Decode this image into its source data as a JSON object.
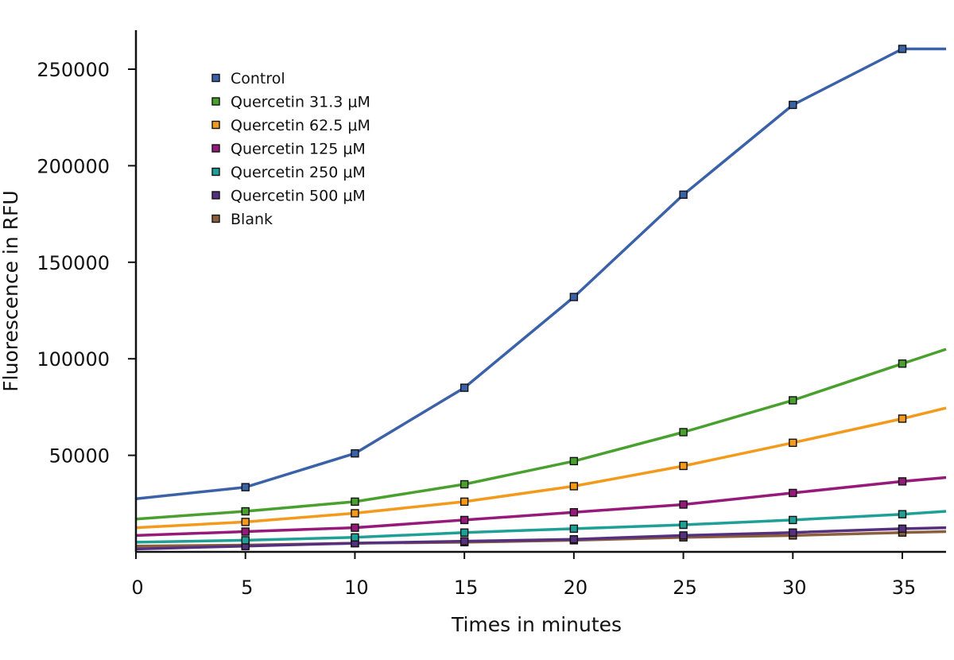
{
  "chart_data": {
    "type": "line",
    "title": "",
    "xlabel": "Times in minutes",
    "ylabel": "Fluorescence in RFU",
    "xlim": [
      0,
      37
    ],
    "ylim": [
      0,
      270000
    ],
    "x_ticks": [
      "0",
      "5",
      "10",
      "15",
      "20",
      "25",
      "30",
      "35"
    ],
    "y_ticks": [
      "50000",
      "100000",
      "150000",
      "200000",
      "250000"
    ],
    "grid": false,
    "legend_position": "top-left",
    "x": [
      0,
      5,
      10,
      15,
      20,
      25,
      30,
      35,
      37
    ],
    "marker_x": [
      5,
      10,
      15,
      20,
      25,
      30,
      35
    ],
    "series": [
      {
        "name": "Control",
        "color": "#3b62a8",
        "values": [
          27500,
          33500,
          51000,
          85000,
          132000,
          185000,
          231500,
          260500,
          260500
        ]
      },
      {
        "name": "Quercetin 31.3 μM",
        "color": "#4aa02f",
        "values": [
          17000,
          21000,
          26000,
          35000,
          47000,
          62000,
          78500,
          97500,
          105000
        ]
      },
      {
        "name": "Quercetin 62.5 μM",
        "color": "#f39a1c",
        "values": [
          12500,
          15500,
          20000,
          26000,
          34000,
          44500,
          56500,
          69000,
          74500
        ]
      },
      {
        "name": "Quercetin 125 μM",
        "color": "#951a7a",
        "values": [
          8500,
          10500,
          12500,
          16500,
          20500,
          24500,
          30500,
          36500,
          38500
        ]
      },
      {
        "name": "Quercetin 250 μM",
        "color": "#1fa096",
        "values": [
          5000,
          6000,
          7500,
          10000,
          12000,
          14000,
          16500,
          19500,
          21000
        ]
      },
      {
        "name": "Quercetin 500 μM",
        "color": "#55307e",
        "values": [
          1500,
          3000,
          4500,
          5500,
          6500,
          8500,
          10000,
          12000,
          12500
        ]
      },
      {
        "name": "Blank",
        "color": "#8b5e3c",
        "values": [
          3000,
          3500,
          4500,
          5000,
          6000,
          7500,
          8500,
          10000,
          10500
        ]
      }
    ]
  }
}
